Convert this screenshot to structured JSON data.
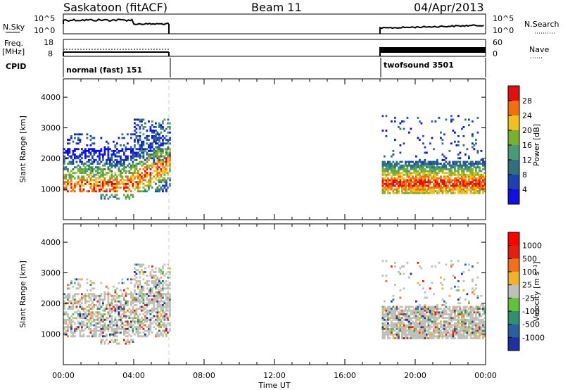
{
  "header": {
    "title": "Saskatoon (fitACF)",
    "beam": "Beam 11",
    "date": "04/Apr/2013"
  },
  "labels": {
    "nsky": "N.Sky",
    "nsearch": "N.Search",
    "freq": "Freq.",
    "freq_unit": "[MHz]",
    "nave": "Nave",
    "cpid": "CPID",
    "cpid_left": "normal (fast) 151",
    "cpid_right": "twofsound 3501",
    "noise_ticks_left": [
      "10^5",
      "10^0"
    ],
    "noise_ticks_right": [
      "10^5",
      "10^0"
    ],
    "freq_ticks": [
      "18",
      "8"
    ],
    "nave_ticks": [
      "60",
      "0"
    ],
    "xlabel": "Time UT",
    "ylabel": "Slant Range [km]",
    "power_label": "Power [dB]",
    "velocity_label": "Velocity [m s⁻¹]"
  },
  "chart_data": [
    {
      "type": "heatmap",
      "name": "power",
      "xlabel": "Time UT",
      "ylabel": "Slant Range [km]",
      "xlim": [
        0,
        24
      ],
      "ylim": [
        0,
        4600
      ],
      "x_ticks": [
        "00:00",
        "04:00",
        "08:00",
        "12:00",
        "16:00",
        "20:00",
        "00:00"
      ],
      "y_ticks": [
        "1000",
        "2000",
        "3000",
        "4000"
      ],
      "colorbar": {
        "label": "Power [dB]",
        "ticks": [
          "4",
          "8",
          "12",
          "16",
          "20",
          "24",
          "28"
        ],
        "colors": [
          "#1010e0",
          "#2040b0",
          "#30707a",
          "#4a9a7a",
          "#7ab030",
          "#f0c020",
          "#f07010",
          "#e01010"
        ]
      },
      "echo_regions": [
        {
          "t": [
            0.0,
            6.0
          ],
          "range_km": [
            800,
            3300
          ],
          "peak_power_db": 28
        },
        {
          "t": [
            18.0,
            24.0
          ],
          "range_km": [
            800,
            3400
          ],
          "peak_power_db": 28
        }
      ]
    },
    {
      "type": "heatmap",
      "name": "velocity",
      "xlabel": "Time UT",
      "ylabel": "Slant Range [km]",
      "xlim": [
        0,
        24
      ],
      "ylim": [
        0,
        4600
      ],
      "x_ticks": [
        "00:00",
        "04:00",
        "08:00",
        "12:00",
        "16:00",
        "20:00",
        "00:00"
      ],
      "y_ticks": [
        "1000",
        "2000",
        "3000",
        "4000"
      ],
      "colorbar": {
        "label": "Velocity [m s⁻¹]",
        "ticks": [
          "1000",
          "500",
          "100",
          "25",
          "-25",
          "-100",
          "-500",
          "-1000"
        ],
        "colors": [
          "#2030a0",
          "#2a60a0",
          "#30906a",
          "#60c040",
          "#c0c0b8",
          "#f0b030",
          "#f07020",
          "#e02010",
          "#ff0000"
        ]
      },
      "echo_regions": [
        {
          "t": [
            0.0,
            6.0
          ],
          "range_km": [
            800,
            3300
          ]
        },
        {
          "t": [
            18.0,
            24.0
          ],
          "range_km": [
            800,
            3400
          ]
        }
      ]
    }
  ]
}
